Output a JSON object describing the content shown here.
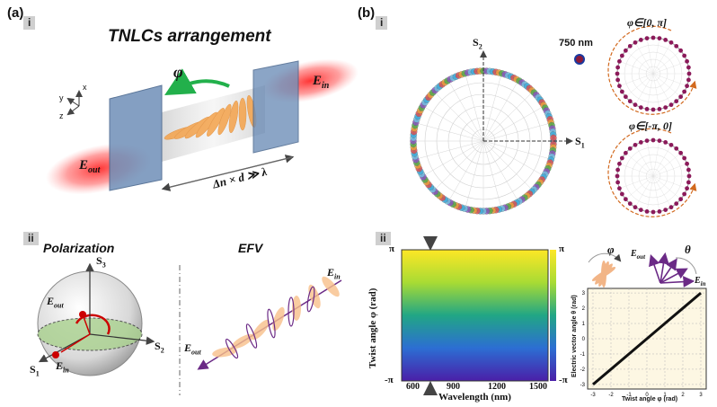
{
  "panel_a": {
    "letter": "(a)",
    "sub_i": "i",
    "sub_ii": "ii",
    "title": "TNLCs arrangement",
    "phi_label": "φ",
    "E_in": "E",
    "E_in_sub": "in",
    "E_out": "E",
    "E_out_sub": "out",
    "condition": "Δn × d ≫ λ",
    "axes": {
      "x": "x",
      "y": "y",
      "z": "z"
    },
    "polarization_title": "Polarization",
    "efv_title": "EFV",
    "sphere_S1": "S",
    "sphere_S1_sub": "1",
    "sphere_S2": "S",
    "sphere_S2_sub": "2",
    "sphere_S3": "S",
    "sphere_S3_sub": "3",
    "colors": {
      "beam": "#ff3b3b",
      "glass": "#6f8fb8",
      "lc": "#f4a24a",
      "arrow": "#22b04b",
      "efv": "#6b2a86"
    }
  },
  "panel_b": {
    "letter": "(b)",
    "sub_i": "i",
    "sub_ii": "ii",
    "S1": "S",
    "S1_sub": "1",
    "S2": "S",
    "S2_sub": "2",
    "wavelength_tag": "750 nm",
    "range1": "φ∈[0, π]",
    "range2": "φ∈[-π, 0]",
    "heatmap": {
      "ylabel": "Twist angle φ (rad)",
      "xlabel": "Wavelength (nm)",
      "y_top": "π",
      "y_bottom": "-π",
      "x_ticks": [
        "600",
        "900",
        "1200",
        "1500"
      ],
      "cbar_top": "π",
      "cbar_bottom": "-π"
    },
    "inset_phi": "φ",
    "inset_theta": "θ",
    "inset_Eout": "E",
    "inset_Eout_sub": "out",
    "inset_Ein": "E",
    "inset_Ein_sub": "in"
  },
  "chart_data": {
    "type": "line",
    "xlabel": "Twist angle φ (rad)",
    "ylabel": "Electric vector angle θ (rad)",
    "x": [
      -3,
      -2,
      -1,
      0,
      1,
      2,
      3
    ],
    "series": [
      {
        "values": [
          -3,
          -2,
          -1,
          0,
          1,
          2,
          3
        ]
      }
    ],
    "xlim": [
      -3.3,
      3.3
    ],
    "ylim": [
      -3.3,
      3.3
    ],
    "x_ticks": [
      "-3",
      "-2",
      "-1",
      "0",
      "1",
      "2",
      "3"
    ],
    "y_ticks": [
      "-3",
      "-2",
      "-1",
      "0",
      "1",
      "2",
      "3"
    ],
    "grid": true
  }
}
